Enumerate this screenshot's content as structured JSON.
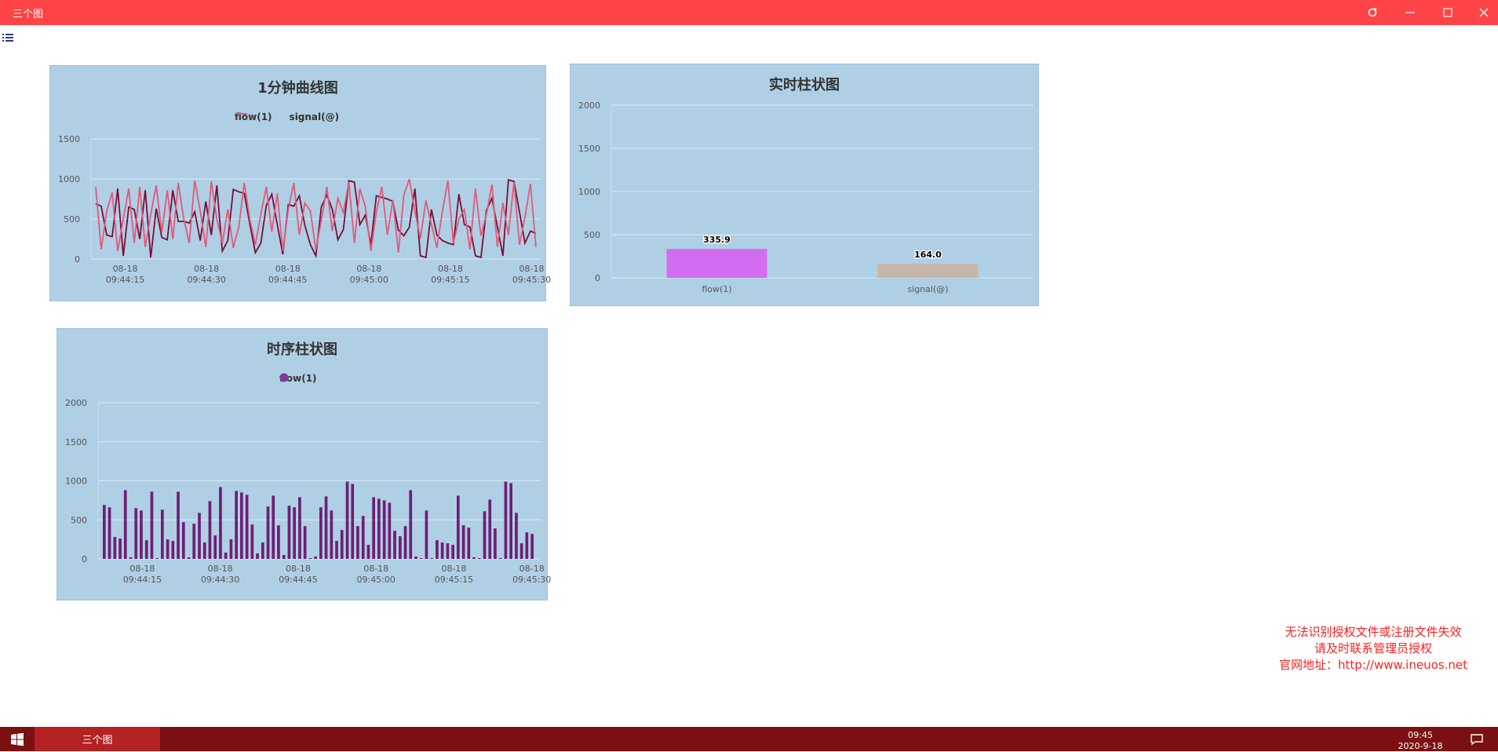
{
  "window": {
    "title": "三个图",
    "controls": [
      "refresh-icon",
      "minimize-icon",
      "maximize-icon",
      "close-icon"
    ],
    "accent": "#fe4446"
  },
  "toolbar": {
    "menu_icon": "list-icon"
  },
  "line_chart": {
    "title": "1分钟曲线图",
    "legend": [
      "flow(1)",
      "signal(@)"
    ],
    "colors": [
      "#7b0d35",
      "#e05a7a"
    ],
    "chart_data": {
      "type": "line",
      "ylim": [
        0,
        1500
      ],
      "yticks": [
        0,
        500,
        1000,
        1500
      ],
      "x_ticks": [
        {
          "date": "08-18",
          "time": "09:44:15"
        },
        {
          "date": "08-18",
          "time": "09:44:30"
        },
        {
          "date": "08-18",
          "time": "09:44:45"
        },
        {
          "date": "08-18",
          "time": "09:45:00"
        },
        {
          "date": "08-18",
          "time": "09:45:15"
        },
        {
          "date": "08-18",
          "time": "09:45:30"
        }
      ],
      "series": [
        {
          "name": "flow(1)",
          "values": [
            690,
            660,
            300,
            280,
            880,
            40,
            650,
            620,
            250,
            860,
            20,
            630,
            270,
            240,
            860,
            470,
            470,
            450,
            590,
            230,
            720,
            300,
            920,
            100,
            230,
            870,
            840,
            820,
            440,
            80,
            200,
            670,
            810,
            430,
            60,
            680,
            660,
            790,
            420,
            180,
            40,
            650,
            800,
            620,
            240,
            370,
            980,
            960,
            430,
            550,
            180,
            790,
            770,
            750,
            720,
            360,
            290,
            400,
            880,
            40,
            20,
            620,
            300,
            230,
            200,
            180,
            810,
            430,
            400,
            40,
            20,
            610,
            760,
            400,
            40,
            990,
            970,
            590,
            200,
            350,
            320
          ]
        },
        {
          "name": "signal(@)",
          "values": [
            900,
            120,
            600,
            830,
            100,
            500,
            880,
            200,
            900,
            150,
            560,
            920,
            330,
            860,
            250,
            950,
            500,
            200,
            980,
            600,
            150,
            970,
            500,
            200,
            620,
            140,
            400,
            950,
            500,
            180,
            560,
            900,
            340,
            820,
            100,
            620,
            950,
            300,
            700,
            600,
            120,
            480,
            900,
            350,
            760,
            580,
            960,
            200,
            880,
            650,
            100,
            590,
            900,
            300,
            740,
            80,
            800,
            1000,
            600,
            260,
            730,
            430,
            140,
            600,
            980,
            200,
            500,
            620,
            120,
            880,
            290,
            560,
            930,
            150,
            700,
            300,
            960,
            180,
            520,
            940,
            150
          ]
        }
      ]
    }
  },
  "realtime_bar": {
    "title": "实时柱状图",
    "chart_data": {
      "type": "bar",
      "categories": [
        "flow(1)",
        "signal(@)"
      ],
      "values": [
        335.9,
        164.0
      ],
      "value_labels": [
        "335.9",
        "164.0"
      ],
      "colors": [
        "#d36cf0",
        "#c4b7a9"
      ],
      "ylim": [
        0,
        2000
      ],
      "yticks": [
        0,
        500,
        1000,
        1500,
        2000
      ]
    }
  },
  "time_bar": {
    "title": "时序柱状图",
    "legend": [
      "flow(1)"
    ],
    "colors": [
      "#6e1f74"
    ],
    "chart_data": {
      "type": "bar",
      "ylim": [
        0,
        2000
      ],
      "yticks": [
        0,
        500,
        1000,
        1500,
        2000
      ],
      "x_ticks": [
        {
          "date": "08-18",
          "time": "09:44:15"
        },
        {
          "date": "08-18",
          "time": "09:44:30"
        },
        {
          "date": "08-18",
          "time": "09:44:45"
        },
        {
          "date": "08-18",
          "time": "09:45:00"
        },
        {
          "date": "08-18",
          "time": "09:45:15"
        },
        {
          "date": "08-18",
          "time": "09:45:30"
        }
      ],
      "series": [
        {
          "name": "flow(1)",
          "values": [
            690,
            660,
            280,
            260,
            880,
            20,
            650,
            620,
            240,
            860,
            10,
            630,
            250,
            230,
            860,
            470,
            20,
            450,
            590,
            210,
            740,
            300,
            920,
            80,
            250,
            870,
            850,
            820,
            440,
            70,
            210,
            670,
            810,
            430,
            50,
            680,
            660,
            790,
            420,
            10,
            30,
            660,
            800,
            620,
            230,
            370,
            990,
            960,
            420,
            550,
            180,
            790,
            770,
            750,
            720,
            360,
            290,
            420,
            880,
            30,
            10,
            620,
            10,
            240,
            210,
            200,
            180,
            810,
            430,
            400,
            20,
            10,
            610,
            760,
            390,
            10,
            990,
            970,
            590,
            200,
            340,
            320
          ]
        }
      ]
    }
  },
  "license_warning": {
    "line1": "无法识别授权文件或注册文件失效",
    "line2": "请及时联系管理员授权",
    "line3": "官网地址：http://www.ineuos.net"
  },
  "taskbar": {
    "start_icon": "windows-icon",
    "app_label": "三个图",
    "time": "09:45",
    "date": "2020-9-18",
    "notification_icon": "chat-icon"
  }
}
